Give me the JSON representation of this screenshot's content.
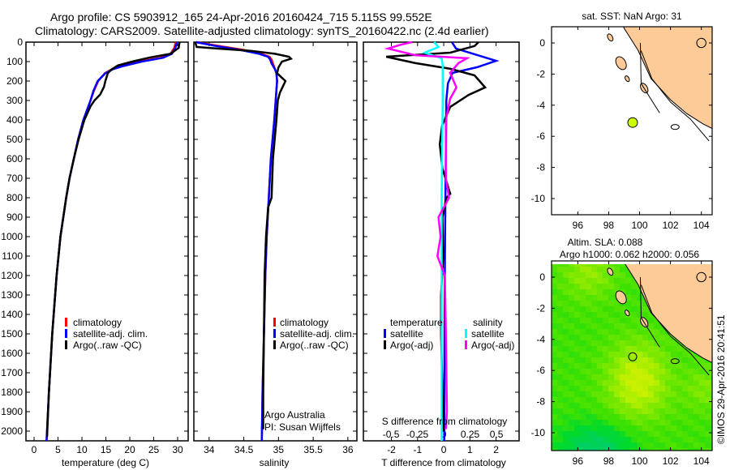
{
  "header": {
    "title_line1": "Argo profile: CS 5903912_165 24-Apr-2016 20160424_715 5.115S 99.552E",
    "title_line2": "Climatology: CARS2009. Satellite-adjusted climatology: synTS_20160422.nc (2.4d earlier)"
  },
  "colors": {
    "climatology": "#ff0000",
    "satellite": "#0000ff",
    "argo": "#000000",
    "sal_satellite": "#00ffff",
    "sal_argo": "#ff00ff",
    "land": "#fccb97"
  },
  "chart_data": [
    {
      "type": "line",
      "id": "temperature",
      "xlabel": "temperature (deg C)",
      "ylabel": "",
      "xlim": [
        -1.7,
        32.2
      ],
      "ylim": [
        2050,
        0
      ],
      "xticks": [
        0,
        5,
        10,
        15,
        20,
        25,
        30
      ],
      "xtick_labels": [
        "0",
        "5",
        "10",
        "15",
        "20",
        "25",
        "30"
      ],
      "yticks": [
        0,
        100,
        200,
        300,
        400,
        500,
        600,
        700,
        800,
        900,
        1000,
        1100,
        1200,
        1300,
        1400,
        1500,
        1600,
        1700,
        1800,
        1900,
        2000
      ],
      "ytick_labels": [
        "0",
        "100",
        "200",
        "300",
        "400",
        "500",
        "600",
        "700",
        "800",
        "900",
        "1000",
        "1100",
        "1200",
        "1300",
        "1400",
        "1500",
        "1600",
        "1700",
        "1800",
        "1900",
        "2000"
      ],
      "legend": [
        "climatology",
        "satellite-adj. clim.",
        "Argo(..raw -QC)"
      ],
      "series": [
        {
          "name": "climatology",
          "color": "#ff0000",
          "depth": [
            0,
            30,
            60,
            80,
            100,
            125,
            140,
            160,
            200,
            250,
            300,
            400,
            500,
            600,
            700,
            800,
            1000,
            1200,
            1500,
            1800,
            2050
          ],
          "values": [
            29.6,
            29.3,
            28.5,
            26.5,
            22,
            18,
            16.2,
            14.8,
            13.4,
            12.5,
            11.8,
            10.3,
            9.2,
            8.3,
            7.4,
            6.7,
            5.5,
            4.7,
            3.8,
            3.1,
            2.6
          ]
        },
        {
          "name": "satellite-adj. clim.",
          "color": "#0000ff",
          "depth": [
            0,
            30,
            60,
            80,
            100,
            125,
            140,
            160,
            200,
            250,
            300,
            400,
            500,
            600,
            700,
            800,
            1000,
            1200,
            1500,
            1800,
            2050
          ],
          "values": [
            29.9,
            29.5,
            28.8,
            27,
            22.5,
            18.3,
            16.4,
            14.9,
            13.3,
            12.4,
            11.8,
            10.3,
            9.2,
            8.3,
            7.4,
            6.7,
            5.5,
            4.7,
            3.8,
            3.1,
            2.6
          ]
        },
        {
          "name": "Argo(..raw -QC)",
          "color": "#000000",
          "depth": [
            0,
            30,
            60,
            80,
            100,
            120,
            140,
            160,
            200,
            230,
            270,
            300,
            330,
            400,
            500,
            600,
            700,
            800,
            1000,
            1200,
            1500,
            1800,
            2030
          ],
          "values": [
            30.4,
            30.2,
            28.5,
            24,
            20.5,
            17.5,
            16.2,
            15.4,
            14.9,
            14.6,
            13.8,
            12.6,
            11.8,
            10.5,
            9.3,
            8.3,
            7.4,
            6.7,
            5.5,
            4.7,
            3.8,
            3.1,
            2.7
          ]
        }
      ]
    },
    {
      "type": "line",
      "id": "salinity",
      "xlabel": "salinity",
      "xlim": [
        33.78,
        36.13
      ],
      "ylim": [
        2050,
        0
      ],
      "xticks": [
        34,
        34.5,
        35,
        35.5,
        36
      ],
      "xtick_labels": [
        "34",
        "34.5",
        "35",
        "35.5",
        "36"
      ],
      "legend": [
        "climatology",
        "satellite-adj. clim.",
        "Argo(..raw -QC)"
      ],
      "annotation": [
        "Argo Australia",
        "PI: Susan Wijffels"
      ],
      "series": [
        {
          "name": "climatology",
          "color": "#ff0000",
          "depth": [
            0,
            20,
            40,
            60,
            75,
            90,
            110,
            140,
            160,
            200,
            300,
            400,
            600,
            800,
            1000,
            1200,
            1500,
            1800,
            2050
          ],
          "values": [
            33.82,
            34.15,
            34.5,
            34.75,
            34.87,
            34.9,
            34.92,
            34.95,
            34.97,
            34.98,
            34.96,
            34.94,
            34.89,
            34.86,
            34.83,
            34.81,
            34.79,
            34.77,
            34.76
          ]
        },
        {
          "name": "satellite-adj. clim.",
          "color": "#0000ff",
          "depth": [
            0,
            20,
            40,
            60,
            75,
            90,
            110,
            140,
            160,
            200,
            300,
            400,
            600,
            800,
            1000,
            1200,
            1500,
            1800,
            2050
          ],
          "values": [
            33.81,
            34.1,
            34.45,
            34.72,
            34.85,
            34.88,
            34.9,
            34.95,
            34.97,
            34.98,
            34.96,
            34.94,
            34.89,
            34.86,
            34.83,
            34.81,
            34.79,
            34.77,
            34.76
          ]
        },
        {
          "name": "Argo(..raw -QC)",
          "color": "#000000",
          "depth": [
            0,
            25,
            35,
            45,
            60,
            75,
            85,
            100,
            130,
            160,
            200,
            230,
            260,
            300,
            400,
            600,
            800,
            850,
            900,
            1000,
            1100,
            1200,
            1500,
            1800,
            1990
          ],
          "values": [
            33.8,
            33.82,
            34.2,
            34.6,
            34.95,
            35.15,
            35.18,
            35.05,
            35.0,
            34.98,
            35.1,
            35.06,
            35.02,
            34.99,
            34.97,
            34.92,
            34.9,
            34.85,
            34.84,
            34.82,
            34.81,
            34.8,
            34.79,
            34.78,
            34.78
          ]
        }
      ]
    },
    {
      "type": "line",
      "id": "difference",
      "xlabel": "T difference from climatology",
      "xlim": [
        -3.07,
        2.88
      ],
      "ylim": [
        2050,
        0
      ],
      "xticks": [
        -2,
        -1,
        0,
        1,
        2
      ],
      "xtick_labels": [
        "-2",
        "-1",
        "0",
        "1",
        "2"
      ],
      "secondary_axis": {
        "label": "S difference from climatology",
        "xlim": [
          -0.762,
          0.715
        ],
        "ticks": [
          -0.5,
          -0.25,
          0,
          0.25,
          0.5
        ],
        "tick_labels": [
          "-0.5",
          "-0.25",
          "0",
          "0.25",
          "0.5"
        ]
      },
      "legend": {
        "temperature_heading": "temperature",
        "salinity_heading": "salinity",
        "items": [
          "satellite",
          "Argo(-adj)",
          "satellite",
          "Argo(-adj)"
        ]
      },
      "series": [
        {
          "name": "T satellite",
          "axis": "T",
          "color": "#0000ff",
          "depth": [
            0,
            33,
            62,
            96,
            129,
            158,
            212,
            300,
            600,
            1000,
            1500,
            2050
          ],
          "values": [
            0.31,
            0.47,
            1.18,
            2.0,
            1.27,
            0.34,
            0.16,
            0.1,
            0.08,
            0.05,
            0.03,
            0.02
          ]
        },
        {
          "name": "T Argo(-adj)",
          "axis": "T",
          "color": "#000000",
          "depth": [
            0,
            20,
            54,
            75,
            108,
            137,
            171,
            233,
            271,
            333,
            429,
            525,
            650,
            780,
            800,
            900,
            1100,
            1300,
            1500,
            1800,
            2000
          ],
          "values": [
            1.33,
            1.18,
            0.25,
            -2.2,
            -1.08,
            0.25,
            1.18,
            1.58,
            0.96,
            0.25,
            -0.06,
            -0.15,
            -0.05,
            0.25,
            0.1,
            -0.05,
            -0.02,
            -0.1,
            -0.1,
            -0.05,
            0
          ]
        },
        {
          "name": "S satellite",
          "axis": "S",
          "color": "#00ffff",
          "depth": [
            0,
            25,
            54,
            83,
            120,
            300,
            800,
            1500,
            2050
          ],
          "values": [
            -0.09,
            -0.05,
            -0.18,
            -0.02,
            -0.01,
            -0.01,
            -0.02,
            -0.02,
            -0.02
          ]
        },
        {
          "name": "S Argo(-adj)",
          "axis": "S",
          "color": "#ff00ff",
          "depth": [
            0,
            12,
            33,
            67,
            83,
            108,
            158,
            233,
            292,
            400,
            700,
            800,
            900,
            1000,
            1100,
            1200,
            1500,
            1900,
            1990
          ],
          "values": [
            -0.3,
            -0.4,
            -0.53,
            -0.27,
            0.22,
            0.14,
            0.06,
            0.12,
            0.06,
            0.02,
            0.02,
            0.05,
            -0.05,
            -0.03,
            -0.06,
            0.01,
            0.02,
            0.03,
            0.02
          ]
        }
      ]
    }
  ],
  "maps": {
    "xticks": [
      96,
      98,
      100,
      102,
      104
    ],
    "xtick_labels": [
      "96",
      "98",
      "100",
      "102",
      "104"
    ],
    "yticks": [
      0,
      -2,
      -4,
      -6,
      -8,
      -10
    ],
    "ytick_labels": [
      "0",
      "-2",
      "-4",
      "-6",
      "-8",
      "-10"
    ],
    "top": {
      "title": "sat. SST: NaN Argo: 31"
    },
    "bottom": {
      "title_line1": "Altim. SLA: 0.088",
      "title_line2": "Argo h1000: 0.062 h2000: 0.056"
    },
    "float_position": {
      "lon": 99.552,
      "lat": -5.115
    }
  },
  "footer": {
    "credit": "©IMOS 29-Apr-2016 20:41:51"
  }
}
